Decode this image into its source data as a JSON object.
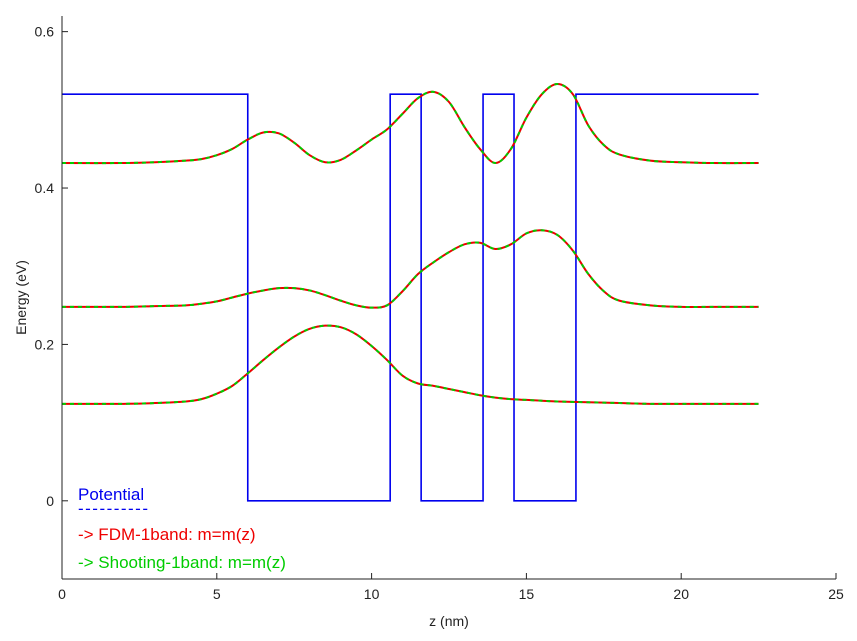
{
  "chart_data": {
    "type": "line",
    "title": "",
    "xlabel": "z (nm)",
    "ylabel": "Energy (eV)",
    "xlim": [
      0,
      25
    ],
    "ylim": [
      -0.1,
      0.62
    ],
    "xticks": [
      0,
      5,
      10,
      15,
      20,
      25
    ],
    "xtick_labels": [
      "0",
      "5",
      "10",
      "15",
      "20",
      "25"
    ],
    "yticks": [
      0,
      0.2,
      0.4,
      0.6
    ],
    "ytick_labels": [
      "0",
      "0.2",
      "0.4",
      "0.6"
    ],
    "grid": false,
    "legend_position": "bottom-left",
    "legend": [
      {
        "label": "Potential",
        "color": "#0000ee",
        "sample": "----------"
      },
      {
        "label": "-> FDM-1band: m=m(z)",
        "color": "#ee0000"
      },
      {
        "label": "-> Shooting-1band: m=m(z)",
        "color": "#00cc00"
      }
    ],
    "series": [
      {
        "name": "Potential",
        "color": "#0000ee",
        "x": [
          0,
          6.0,
          6.0,
          10.6,
          10.6,
          11.6,
          11.6,
          13.6,
          13.6,
          14.6,
          14.6,
          16.6,
          16.6,
          22.5
        ],
        "y": [
          0.52,
          0.52,
          0.0,
          0.0,
          0.52,
          0.52,
          0.0,
          0.0,
          0.52,
          0.52,
          0.0,
          0.0,
          0.52,
          0.52
        ]
      },
      {
        "name": "-> FDM-1band: m=m(z)",
        "color": "#ee0000",
        "dashed": true,
        "curves": [
          {
            "x": [
              0,
              2,
              3,
              4,
              4.5,
              5,
              5.5,
              6,
              6.5,
              7,
              7.5,
              8,
              8.5,
              9,
              9.5,
              10,
              10.5,
              11,
              11.5,
              12,
              12.5,
              13,
              13.5,
              14,
              14.5,
              15,
              15.5,
              16,
              17,
              18,
              19,
              20,
              21,
              22.5
            ],
            "y": [
              0.124,
              0.124,
              0.125,
              0.127,
              0.13,
              0.137,
              0.147,
              0.163,
              0.18,
              0.196,
              0.21,
              0.22,
              0.224,
              0.222,
              0.213,
              0.198,
              0.18,
              0.16,
              0.15,
              0.147,
              0.143,
              0.139,
              0.135,
              0.132,
              0.13,
              0.129,
              0.128,
              0.127,
              0.126,
              0.125,
              0.124,
              0.124,
              0.124,
              0.124
            ]
          },
          {
            "x": [
              0,
              2,
              3,
              4,
              4.5,
              5,
              5.5,
              6,
              6.5,
              7,
              7.5,
              8,
              8.5,
              9,
              9.5,
              10,
              10.5,
              11,
              11.5,
              12,
              12.5,
              13,
              13.5,
              14,
              14.5,
              15,
              15.5,
              16,
              16.5,
              17,
              17.5,
              18,
              19,
              20,
              21,
              22.5
            ],
            "y": [
              0.248,
              0.248,
              0.249,
              0.25,
              0.252,
              0.255,
              0.26,
              0.265,
              0.269,
              0.272,
              0.272,
              0.269,
              0.263,
              0.256,
              0.25,
              0.247,
              0.25,
              0.268,
              0.29,
              0.305,
              0.318,
              0.328,
              0.33,
              0.322,
              0.328,
              0.342,
              0.346,
              0.34,
              0.32,
              0.29,
              0.268,
              0.256,
              0.25,
              0.248,
              0.248,
              0.248
            ]
          },
          {
            "x": [
              0,
              2,
              3,
              4,
              4.5,
              5,
              5.5,
              6,
              6.5,
              7,
              7.5,
              8,
              8.5,
              9,
              9.5,
              10,
              10.5,
              11,
              11.5,
              12,
              12.5,
              13,
              13.5,
              14,
              14.5,
              15,
              15.5,
              16,
              16.5,
              17,
              17.5,
              18,
              19,
              20,
              21,
              22.5
            ],
            "y": [
              0.432,
              0.432,
              0.433,
              0.435,
              0.437,
              0.442,
              0.45,
              0.462,
              0.471,
              0.47,
              0.458,
              0.442,
              0.433,
              0.436,
              0.448,
              0.462,
              0.475,
              0.495,
              0.515,
              0.523,
              0.51,
              0.478,
              0.45,
              0.432,
              0.45,
              0.49,
              0.52,
              0.533,
              0.52,
              0.48,
              0.455,
              0.443,
              0.435,
              0.433,
              0.432,
              0.432
            ]
          }
        ]
      },
      {
        "name": "-> Shooting-1band: m=m(z)",
        "color": "#00cc00",
        "dashed": true,
        "same_as": "-> FDM-1band: m=m(z)"
      }
    ]
  }
}
